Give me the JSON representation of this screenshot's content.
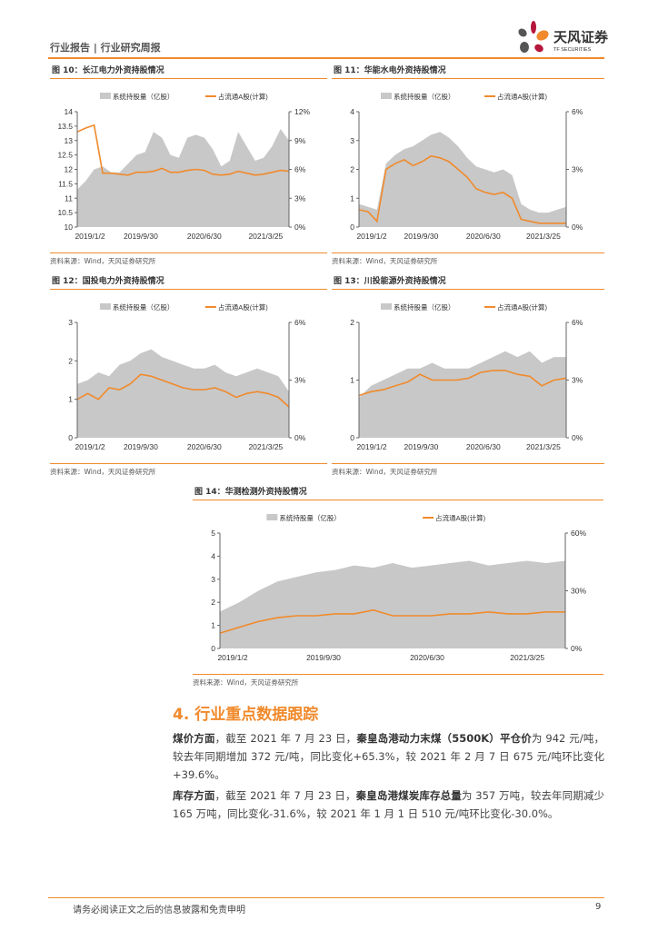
{
  "header": {
    "title": "行业报告 | 行业研究周报",
    "logo_text": "天风证券",
    "logo_sub": "TF SECURITIES"
  },
  "colors": {
    "accent": "#f08a2c",
    "area": "#c8c8c8",
    "logo_red": "#b5173a",
    "logo_orange": "#f08a2c",
    "logo_gray": "#555555"
  },
  "source_text": "资料来源：Wind，天风证券研究所",
  "legend": {
    "area": "系统持股量（亿股）",
    "line": "占流通A股(计算)"
  },
  "chart_data": [
    {
      "id": "fig10",
      "title": "图 10：长江电力外资持股情况",
      "type": "area+line",
      "x_ticks": [
        "2019/1/2",
        "2019/9/30",
        "2020/6/30",
        "2021/3/25"
      ],
      "y_left": {
        "range": [
          10,
          14
        ],
        "ticks": [
          "14",
          "13.5",
          "13",
          "12.5",
          "12",
          "11.5",
          "11",
          "10.5",
          "10"
        ]
      },
      "y_right": {
        "range": [
          0,
          12
        ],
        "ticks": [
          "12%",
          "9%",
          "6%",
          "3%",
          "0%"
        ]
      },
      "area_values": [
        11.3,
        11.6,
        12.0,
        12.1,
        11.9,
        11.9,
        12.2,
        12.5,
        12.6,
        13.3,
        13.1,
        12.5,
        12.4,
        13.1,
        13.2,
        13.1,
        12.7,
        12.1,
        12.3,
        13.3,
        12.8,
        12.3,
        12.4,
        12.8,
        13.4,
        13.0
      ],
      "line_values": [
        9.9,
        10.3,
        10.6,
        5.6,
        5.6,
        5.5,
        5.4,
        5.7,
        5.7,
        5.8,
        6.1,
        5.7,
        5.7,
        5.9,
        6.0,
        5.9,
        5.5,
        5.4,
        5.5,
        5.8,
        5.6,
        5.4,
        5.5,
        5.7,
        5.9,
        5.8
      ]
    },
    {
      "id": "fig11",
      "title": "图 11：华能水电外资持股情况",
      "type": "area+line",
      "x_ticks": [
        "2019/1/2",
        "2019/9/30",
        "2020/6/30",
        "2021/3/25"
      ],
      "y_left": {
        "range": [
          0,
          4
        ],
        "ticks": [
          "4",
          "3",
          "2",
          "1",
          "0"
        ]
      },
      "y_right": {
        "range": [
          0,
          6
        ],
        "ticks": [
          "6%",
          "3%",
          "0%"
        ]
      },
      "area_values": [
        0.8,
        0.7,
        0.6,
        2.2,
        2.5,
        2.7,
        2.8,
        3.0,
        3.2,
        3.3,
        3.1,
        2.8,
        2.4,
        2.1,
        2.0,
        1.9,
        2.0,
        1.8,
        0.8,
        0.6,
        0.5,
        0.5,
        0.6,
        0.7
      ],
      "line_values": [
        0.9,
        0.8,
        0.3,
        3.0,
        3.3,
        3.5,
        3.2,
        3.4,
        3.7,
        3.6,
        3.4,
        3.0,
        2.6,
        2.0,
        1.8,
        1.7,
        1.8,
        1.5,
        0.4,
        0.3,
        0.2,
        0.2,
        0.2,
        0.2
      ]
    },
    {
      "id": "fig12",
      "title": "图 12：国投电力外资持股情况",
      "type": "area+line",
      "x_ticks": [
        "2019/1/2",
        "2019/9/30",
        "2020/6/30",
        "2021/3/25"
      ],
      "y_left": {
        "range": [
          0,
          3
        ],
        "ticks": [
          "3",
          "2",
          "1",
          "0"
        ]
      },
      "y_right": {
        "range": [
          0,
          6
        ],
        "ticks": [
          "6%",
          "3%",
          "0%"
        ]
      },
      "area_values": [
        1.4,
        1.5,
        1.7,
        1.6,
        1.9,
        2.0,
        2.2,
        2.3,
        2.1,
        2.0,
        1.9,
        1.8,
        1.8,
        1.9,
        1.7,
        1.6,
        1.7,
        1.8,
        1.7,
        1.6,
        1.2
      ],
      "line_values": [
        2.0,
        2.3,
        2.0,
        2.6,
        2.5,
        2.8,
        3.3,
        3.2,
        3.0,
        2.8,
        2.6,
        2.5,
        2.5,
        2.6,
        2.4,
        2.1,
        2.3,
        2.4,
        2.3,
        2.1,
        1.6
      ]
    },
    {
      "id": "fig13",
      "title": "图 13：川投能源外资持股情况",
      "type": "area+line",
      "x_ticks": [
        "2019/1/2",
        "2019/9/30",
        "2020/6/30",
        "2021/3/25"
      ],
      "y_left": {
        "range": [
          0,
          2
        ],
        "ticks": [
          "2",
          "1",
          "0"
        ]
      },
      "y_right": {
        "range": [
          0,
          6
        ],
        "ticks": [
          "6%",
          "3%",
          "0%"
        ]
      },
      "area_values": [
        0.7,
        0.9,
        1.0,
        1.1,
        1.2,
        1.2,
        1.3,
        1.2,
        1.2,
        1.2,
        1.3,
        1.4,
        1.5,
        1.4,
        1.5,
        1.3,
        1.4,
        1.4
      ],
      "line_values": [
        2.2,
        2.4,
        2.5,
        2.7,
        2.9,
        3.3,
        3.0,
        3.0,
        3.0,
        3.1,
        3.4,
        3.5,
        3.5,
        3.3,
        3.2,
        2.7,
        3.0,
        3.1
      ]
    },
    {
      "id": "fig14",
      "title": "图 14：华测检测外资持股情况",
      "type": "area+line",
      "x_ticks": [
        "2019/1/2",
        "2019/9/30",
        "2020/6/30",
        "2021/3/25"
      ],
      "y_left": {
        "range": [
          0,
          5
        ],
        "ticks": [
          "5",
          "4",
          "3",
          "2",
          "1",
          "0"
        ]
      },
      "y_right": {
        "range": [
          0,
          60
        ],
        "ticks": [
          "60%",
          "30%",
          "0%"
        ]
      },
      "area_values": [
        1.6,
        2.0,
        2.5,
        2.9,
        3.1,
        3.3,
        3.4,
        3.6,
        3.5,
        3.7,
        3.5,
        3.6,
        3.7,
        3.8,
        3.6,
        3.7,
        3.8,
        3.7,
        3.8
      ],
      "line_values": [
        8,
        11,
        14,
        16,
        17,
        17,
        18,
        18,
        20,
        17,
        17,
        17,
        18,
        18,
        19,
        18,
        18,
        19,
        19
      ]
    }
  ],
  "section": {
    "title": "4. 行业重点数据跟踪"
  },
  "paragraphs": [
    {
      "bold1": "煤价方面",
      "t1": "，截至 2021 年 7 月 23 日，",
      "bold2": "秦皇岛港动力末煤（5500K）平仓价",
      "t2": "为 942 元/吨，较去年同期增加 372 元/吨，同比变化+65.3%，较 2021 年 2 月 7 日 675 元/吨环比变化+39.6%。"
    },
    {
      "bold1": "库存方面",
      "t1": "，截至 2021 年 7 月 23 日，",
      "bold2": "秦皇岛港煤炭库存总量",
      "t2": "为 357 万吨，较去年同期减少 165 万吨，同比变化-31.6%，较 2021 年 1 月 1 日 510 元/吨环比变化-30.0%。"
    }
  ],
  "footer": {
    "disclaimer": "请务必阅读正文之后的信息披露和免责申明",
    "page": "9"
  }
}
